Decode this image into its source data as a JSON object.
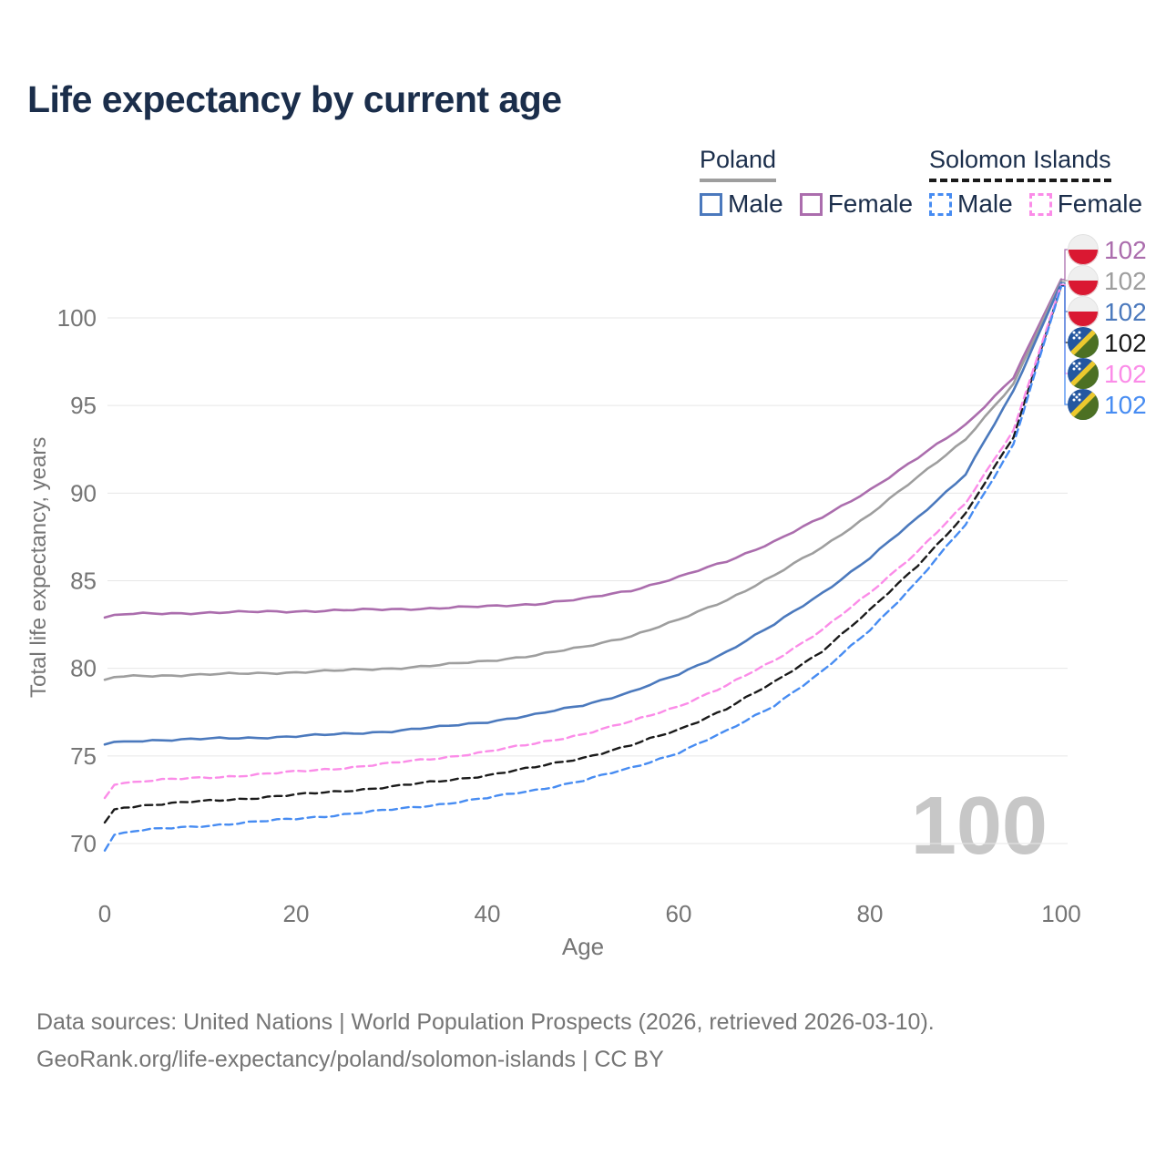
{
  "title": "Life expectancy by current age",
  "watermark": "100",
  "legend": {
    "groups": [
      {
        "label": "Poland",
        "line_style": "solid",
        "items": [
          {
            "label": "Male",
            "color": "#4b79bd"
          },
          {
            "label": "Female",
            "color": "#ab6dad"
          }
        ]
      },
      {
        "label": "Solomon Islands",
        "line_style": "dashed",
        "items": [
          {
            "label": "Male",
            "color": "#478cf2"
          },
          {
            "label": "Female",
            "color": "#fb8ce8"
          }
        ]
      }
    ]
  },
  "chart_data": {
    "type": "line",
    "title": "Life expectancy by current age",
    "xlabel": "Age",
    "ylabel": "Total life expectancy, years",
    "xlim": [
      0,
      100
    ],
    "ylim": [
      68.5,
      103
    ],
    "x_ticks": [
      0,
      20,
      40,
      60,
      80,
      100
    ],
    "y_ticks": [
      70,
      75,
      80,
      85,
      90,
      95,
      100
    ],
    "grid": "horizontal-only",
    "legend_position": "top-right",
    "ages": [
      0,
      1,
      2,
      3,
      4,
      5,
      10,
      15,
      20,
      25,
      30,
      35,
      40,
      45,
      50,
      55,
      60,
      65,
      70,
      75,
      80,
      85,
      90,
      95,
      100
    ],
    "series": [
      {
        "id": "poland-female",
        "country": "Poland",
        "group": "Female",
        "color": "#ab6dad",
        "dash": "solid",
        "flag": "poland",
        "end_label": "102",
        "values": [
          82.9,
          83.05,
          83.08,
          83.1,
          83.11,
          83.12,
          83.17,
          83.21,
          83.26,
          83.31,
          83.37,
          83.44,
          83.53,
          83.68,
          83.95,
          84.45,
          85.2,
          86.1,
          87.25,
          88.6,
          90.2,
          92.0,
          93.9,
          96.6,
          102.2
        ]
      },
      {
        "id": "poland-both-sexes",
        "country": "Poland",
        "group": "Both sexes",
        "color": "#9e9e9e",
        "dash": "solid",
        "flag": "poland",
        "end_label": "102",
        "values": [
          79.35,
          79.5,
          79.53,
          79.55,
          79.57,
          79.58,
          79.64,
          79.7,
          79.78,
          79.88,
          80.0,
          80.18,
          80.42,
          80.75,
          81.2,
          81.85,
          82.75,
          83.9,
          85.3,
          86.9,
          88.8,
          90.9,
          93.1,
          96.2,
          102.1
        ]
      },
      {
        "id": "poland-male",
        "country": "Poland",
        "group": "Male",
        "color": "#4b79bd",
        "dash": "solid",
        "flag": "poland",
        "end_label": "102",
        "values": [
          75.65,
          75.8,
          75.83,
          75.86,
          75.88,
          75.9,
          75.96,
          76.03,
          76.12,
          76.25,
          76.42,
          76.65,
          76.95,
          77.35,
          77.9,
          78.65,
          79.65,
          80.95,
          82.5,
          84.3,
          86.3,
          88.6,
          91.1,
          95.8,
          102.0
        ]
      },
      {
        "id": "solomon-islands-both-sexes",
        "country": "Solomon Islands",
        "group": "Both sexes",
        "color": "#1a1a1a",
        "dash": "dashed",
        "flag": "solomon-islands",
        "end_label": "102",
        "values": [
          71.2,
          71.95,
          72.05,
          72.12,
          72.18,
          72.22,
          72.4,
          72.58,
          72.78,
          73.0,
          73.25,
          73.55,
          73.9,
          74.35,
          74.9,
          75.6,
          76.5,
          77.7,
          79.2,
          81.0,
          83.3,
          85.9,
          88.8,
          93.2,
          101.85
        ]
      },
      {
        "id": "solomon-islands-female",
        "country": "Solomon Islands",
        "group": "Female",
        "color": "#fb8ce8",
        "dash": "dashed",
        "flag": "solomon-islands",
        "end_label": "102",
        "values": [
          72.6,
          73.35,
          73.45,
          73.5,
          73.55,
          73.6,
          73.75,
          73.9,
          74.1,
          74.32,
          74.58,
          74.88,
          75.25,
          75.7,
          76.25,
          76.95,
          77.85,
          79.0,
          80.45,
          82.2,
          84.3,
          86.7,
          89.4,
          93.6,
          101.9
        ]
      },
      {
        "id": "solomon-islands-male",
        "country": "Solomon Islands",
        "group": "Male",
        "color": "#478cf2",
        "dash": "dashed",
        "flag": "solomon-islands",
        "end_label": "102",
        "values": [
          69.6,
          70.5,
          70.62,
          70.7,
          70.76,
          70.8,
          71.0,
          71.2,
          71.42,
          71.66,
          71.93,
          72.24,
          72.6,
          73.05,
          73.6,
          74.3,
          75.2,
          76.4,
          77.9,
          79.8,
          82.2,
          85.0,
          88.2,
          92.8,
          101.8
        ]
      }
    ]
  },
  "footer": {
    "line1": "Data sources: United Nations | World Population Prospects (2026, retrieved 2026-03-10).",
    "line2": "GeoRank.org/life-expectancy/poland/solomon-islands | CC BY"
  }
}
